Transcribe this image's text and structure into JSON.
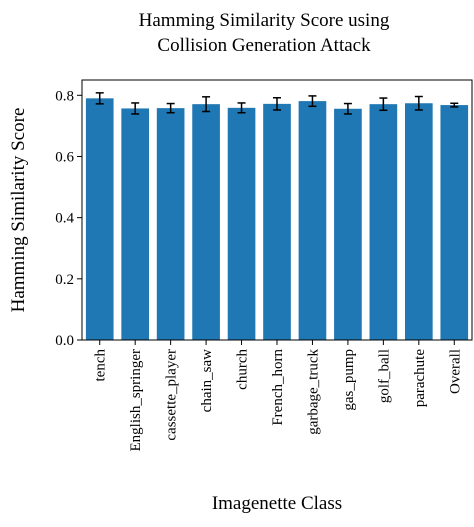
{
  "chart_data": {
    "type": "bar",
    "title_lines": [
      "Hamming Similarity Score using",
      "Collision Generation Attack"
    ],
    "xlabel": "Imagenette Class",
    "ylabel": "Hamming Similarity Score",
    "categories": [
      "tench",
      "English_springer",
      "cassette_player",
      "chain_saw",
      "church",
      "French_horn",
      "garbage_truck",
      "gas_pump",
      "golf_ball",
      "parachute",
      "Overall"
    ],
    "values": [
      0.79,
      0.757,
      0.758,
      0.771,
      0.759,
      0.772,
      0.781,
      0.756,
      0.771,
      0.774,
      0.768
    ],
    "errors": [
      0.018,
      0.018,
      0.015,
      0.024,
      0.016,
      0.02,
      0.017,
      0.017,
      0.02,
      0.022,
      0.006
    ],
    "ylim": [
      0,
      0.85
    ],
    "yticks": [
      "0.0",
      "0.2",
      "0.4",
      "0.6",
      "0.8"
    ],
    "bar_color": "#1f77b4",
    "grid": false,
    "legend": "none"
  }
}
